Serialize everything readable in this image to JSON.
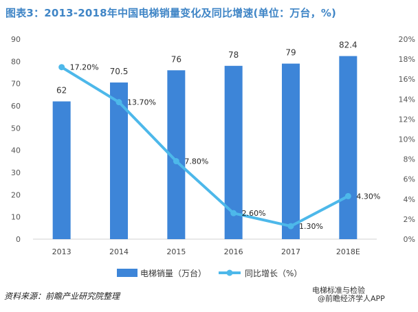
{
  "title": "图表3：2013-2018年中国电梯销量变化及同比增速(单位：万台，%)",
  "source": "资料来源：前瞻产业研究院整理",
  "watermark_wechat": "电梯标准与检验",
  "watermark_app": "@前瞻经济学人APP",
  "colors": {
    "bar": "#3d85d8",
    "line": "#4db8ea",
    "title": "#3f85c6"
  },
  "chart_data": {
    "type": "bar+line",
    "categories": [
      "2013",
      "2014",
      "2015",
      "2016",
      "2017",
      "2018E"
    ],
    "series": [
      {
        "name": "电梯销量（万台）",
        "type": "bar",
        "axis": "left",
        "values": [
          62,
          70.5,
          76,
          78,
          79,
          82.4
        ],
        "labels": [
          "62",
          "70.5",
          "76",
          "78",
          "79",
          "82.4"
        ]
      },
      {
        "name": "同比增长（%）",
        "type": "line",
        "axis": "right",
        "values": [
          17.2,
          13.7,
          7.8,
          2.6,
          1.3,
          4.3
        ],
        "labels": [
          "17.20%",
          "13.70%",
          "7.80%",
          "2.60%",
          "1.30%",
          "4.30%"
        ]
      }
    ],
    "left_axis": {
      "min": 0,
      "max": 90,
      "step": 10,
      "ticks": [
        "0",
        "10",
        "20",
        "30",
        "40",
        "50",
        "60",
        "70",
        "80",
        "90"
      ]
    },
    "right_axis": {
      "min": 0,
      "max": 20,
      "step": 2,
      "ticks": [
        "0%",
        "2%",
        "4%",
        "6%",
        "8%",
        "10%",
        "12%",
        "14%",
        "16%",
        "18%",
        "20%"
      ]
    },
    "grid": false,
    "legend_position": "bottom"
  }
}
